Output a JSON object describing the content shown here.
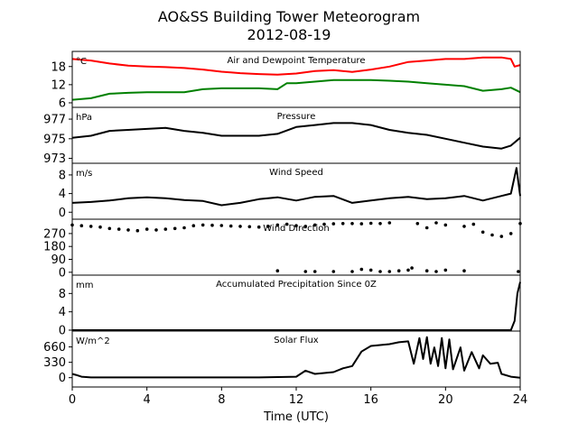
{
  "chart_data": {
    "title": "AO&SS Building Tower Meteorogram",
    "subtitle": "2012-08-19",
    "xlabel": "Time (UTC)",
    "xlim": [
      0,
      24
    ],
    "xticks": [
      0,
      4,
      8,
      12,
      16,
      20,
      24
    ],
    "panels": [
      {
        "type": "line",
        "title": "Air and Dewpoint Temperature",
        "unit": "°C",
        "ylim": [
          4.5,
          23
        ],
        "yticks": [
          6,
          12,
          18
        ],
        "series": [
          {
            "color": "#ff0000",
            "x": [
              0,
              1,
              2,
              3,
              4,
              5,
              6,
              7,
              8,
              9,
              10,
              11,
              12,
              13,
              14,
              15,
              16,
              17,
              18,
              19,
              20,
              21,
              22,
              23,
              23.5,
              23.7,
              24
            ],
            "values": [
              20.5,
              20,
              19,
              18.3,
              18,
              17.8,
              17.5,
              17,
              16.3,
              15.8,
              15.5,
              15.3,
              15.7,
              16.5,
              16.8,
              16.2,
              17,
              18,
              19.5,
              20,
              20.5,
              20.5,
              21,
              21,
              20.5,
              18,
              18.5
            ]
          },
          {
            "color": "#008000",
            "x": [
              0,
              1,
              2,
              3,
              4,
              5,
              6,
              7,
              8,
              9,
              10,
              11,
              11.5,
              12,
              13,
              14,
              15,
              16,
              17,
              18,
              19,
              20,
              21,
              22,
              23,
              23.5,
              24
            ],
            "values": [
              7,
              7.5,
              9,
              9.3,
              9.5,
              9.5,
              9.5,
              10.5,
              10.8,
              10.8,
              10.8,
              10.5,
              12.5,
              12.5,
              13,
              13.5,
              13.5,
              13.5,
              13.3,
              13,
              12.5,
              12,
              11.5,
              10,
              10.5,
              11,
              9.5
            ]
          }
        ]
      },
      {
        "type": "line",
        "title": "Pressure",
        "unit": "hPa",
        "ylim": [
          972.5,
          978.2
        ],
        "yticks": [
          973,
          975,
          977
        ],
        "series": [
          {
            "color": "#000000",
            "x": [
              0,
              1,
              2,
              3,
              4,
              5,
              6,
              7,
              8,
              9,
              10,
              11,
              12,
              13,
              14,
              15,
              16,
              17,
              18,
              19,
              20,
              21,
              22,
              23,
              23.5,
              24
            ],
            "values": [
              975.1,
              975.3,
              975.8,
              975.9,
              976.0,
              976.1,
              975.8,
              975.6,
              975.3,
              975.3,
              975.3,
              975.5,
              976.2,
              976.4,
              976.6,
              976.6,
              976.4,
              975.9,
              975.6,
              975.4,
              975.0,
              974.6,
              974.2,
              974.0,
              974.3,
              975.1
            ]
          }
        ]
      },
      {
        "type": "line",
        "title": "Wind Speed",
        "unit": "m/s",
        "ylim": [
          -1.5,
          10.5
        ],
        "yticks": [
          0,
          4,
          8
        ],
        "series": [
          {
            "color": "#000000",
            "x": [
              0,
              1,
              2,
              3,
              4,
              5,
              6,
              7,
              8,
              9,
              10,
              11,
              12,
              13,
              14,
              15,
              16,
              17,
              18,
              19,
              20,
              21,
              22,
              23,
              23.5,
              23.8,
              24
            ],
            "values": [
              2,
              2.2,
              2.5,
              3,
              3.2,
              3,
              2.6,
              2.4,
              1.5,
              2.0,
              2.8,
              3.2,
              2.5,
              3.3,
              3.5,
              2,
              2.5,
              3,
              3.3,
              2.8,
              3,
              3.5,
              2.5,
              3.5,
              4,
              9.5,
              3.5
            ]
          }
        ]
      },
      {
        "type": "scatter",
        "title": "Wind Direction",
        "ylim": [
          -20,
          370
        ],
        "yticks": [
          0,
          90,
          180,
          270
        ],
        "series": [
          {
            "color": "#000000",
            "x": [
              0,
              0.5,
              1,
              1.5,
              2,
              2.5,
              3,
              3.5,
              4,
              4.5,
              5,
              5.5,
              6,
              6.5,
              7,
              7.5,
              8,
              8.5,
              9,
              9.5,
              10,
              10.5,
              11,
              11.5,
              12,
              12.5,
              13,
              13.5,
              14,
              14.5,
              15,
              15.5,
              16,
              16.5,
              17,
              18.5,
              19,
              19.5,
              20,
              21,
              21.5,
              22,
              22.5,
              23,
              23.5,
              24
            ],
            "values": [
              330,
              325,
              320,
              315,
              305,
              300,
              295,
              290,
              300,
              295,
              300,
              305,
              310,
              325,
              330,
              328,
              326,
              322,
              320,
              318,
              315,
              320,
              330,
              335,
              325,
              320,
              330,
              335,
              338,
              340,
              340,
              338,
              342,
              340,
              345,
              340,
              310,
              345,
              330,
              320,
              335,
              280,
              260,
              250,
              270,
              340
            ]
          },
          {
            "color": "#000000",
            "x": [
              11,
              12.5,
              13,
              14,
              15,
              15.5,
              16,
              16.5,
              17,
              17.5,
              18,
              18.2,
              19,
              19.5,
              20,
              21,
              23.9
            ],
            "values": [
              10,
              5,
              5,
              5,
              5,
              20,
              15,
              5,
              5,
              10,
              15,
              30,
              10,
              5,
              15,
              10,
              5
            ]
          }
        ]
      },
      {
        "type": "line",
        "title": "Accumulated Precipitation Since 0Z",
        "unit": "mm",
        "ylim": [
          -0.2,
          12
        ],
        "yticks": [
          0,
          4,
          8
        ],
        "series": [
          {
            "color": "#000000",
            "x": [
              0,
              23.5,
              23.7,
              23.85,
              24
            ],
            "values": [
              0,
              0,
              2,
              8,
              10.5
            ]
          }
        ]
      },
      {
        "type": "line",
        "title": "Solar Flux",
        "unit": "W/m^2",
        "ylim": [
          -200,
          1000
        ],
        "yticks": [
          0,
          330,
          660
        ],
        "series": [
          {
            "color": "#000000",
            "x": [
              0,
              0.2,
              0.5,
              1,
              6,
              10,
              12,
              12.5,
              13,
              14,
              14.5,
              15,
              15.5,
              16,
              16.5,
              17,
              17.5,
              18,
              18.3,
              18.6,
              18.8,
              19,
              19.2,
              19.4,
              19.6,
              19.8,
              20,
              20.2,
              20.4,
              20.8,
              21,
              21.4,
              21.8,
              22,
              22.4,
              22.8,
              23,
              23.5,
              24
            ],
            "values": [
              80,
              60,
              20,
              5,
              5,
              5,
              20,
              150,
              80,
              120,
              200,
              250,
              560,
              680,
              700,
              720,
              760,
              780,
              300,
              850,
              400,
              870,
              300,
              650,
              250,
              850,
              200,
              820,
              180,
              650,
              150,
              550,
              200,
              480,
              300,
              320,
              80,
              20,
              0
            ]
          }
        ]
      }
    ]
  }
}
